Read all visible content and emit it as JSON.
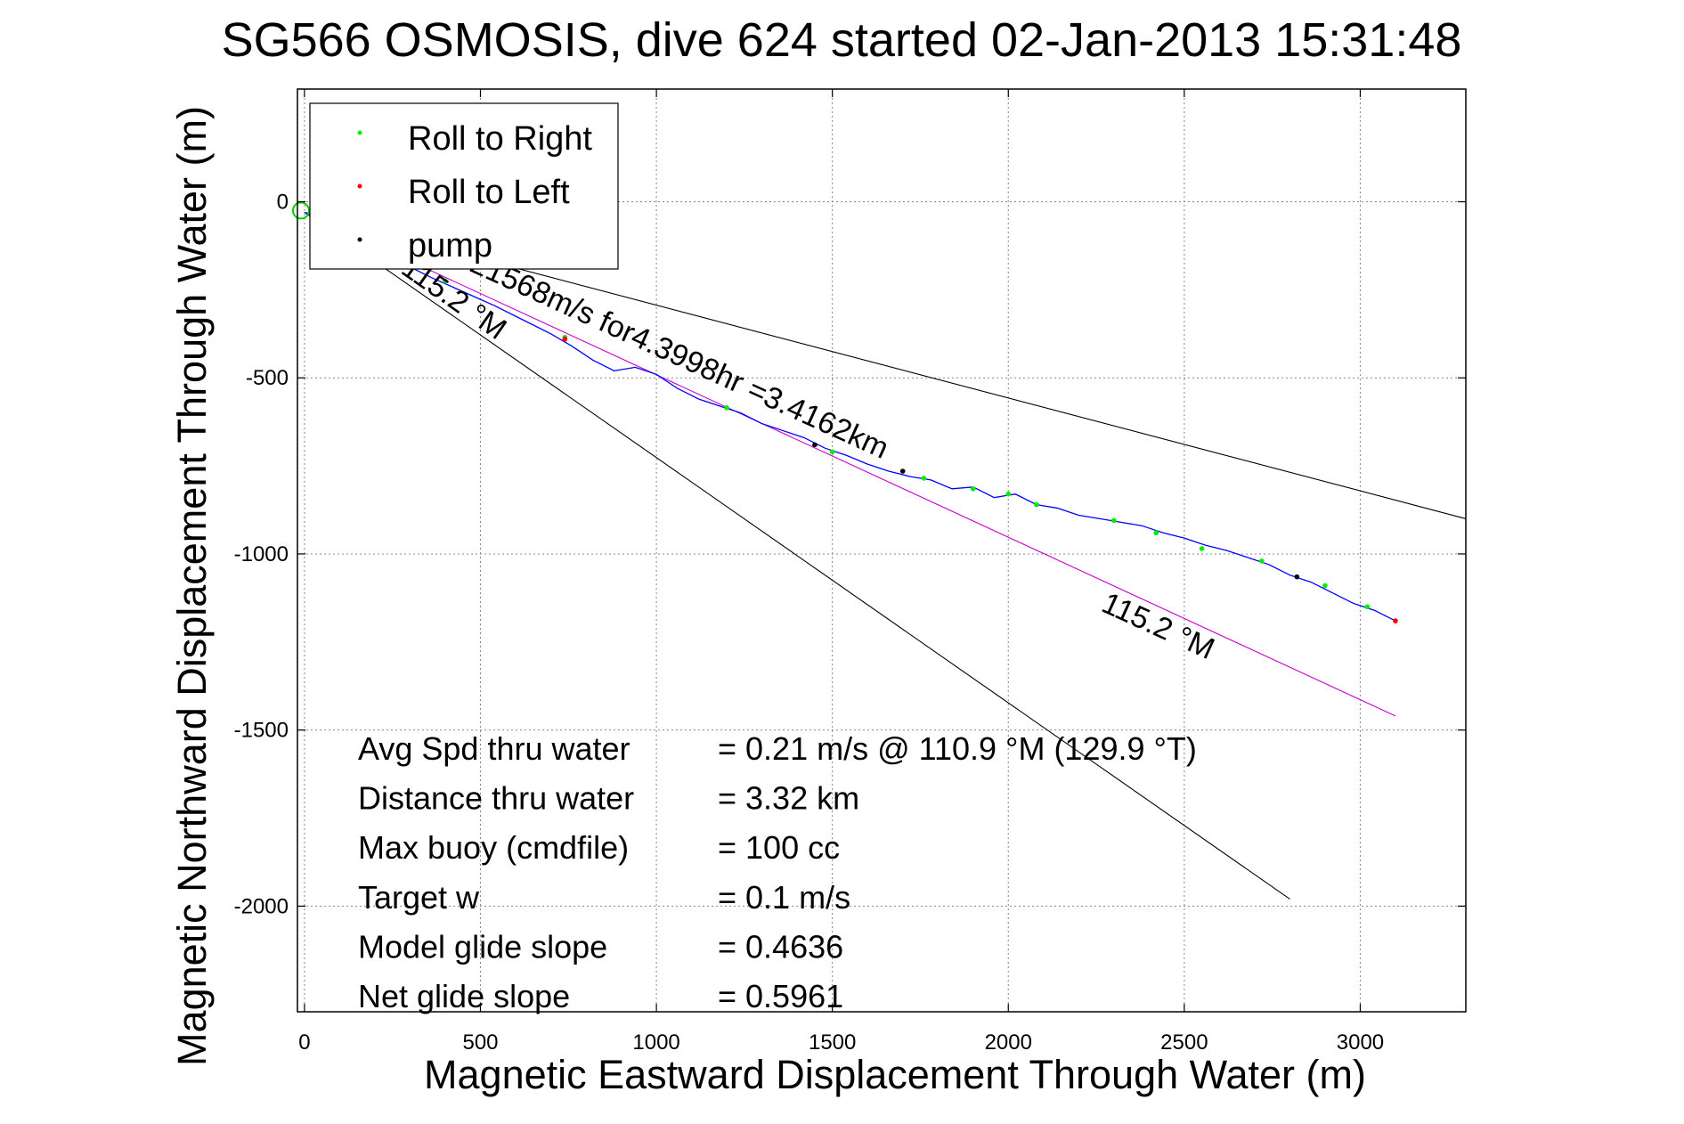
{
  "chart_data": {
    "type": "line",
    "title": "SG566 OSMOSIS, dive 624 started 02-Jan-2013 15:31:48",
    "xlabel": "Magnetic Eastward Displacement Through Water (m)",
    "ylabel": "Magnetic Northward Displacement Through Water (m)",
    "xlim": [
      -20,
      3300
    ],
    "ylim": [
      -2300,
      320
    ],
    "xticks": [
      0,
      500,
      1000,
      1500,
      2000,
      2500,
      3000
    ],
    "yticks": [
      0,
      -500,
      -1000,
      -1500,
      -2000
    ],
    "grid": true,
    "legend_position": "top-left",
    "legend": [
      {
        "label": "Roll to Right",
        "color": "#00ee00"
      },
      {
        "label": "Roll to Left",
        "color": "#ff0000"
      },
      {
        "label": "pump",
        "color": "#000000"
      }
    ],
    "track": {
      "color": "#0000ff",
      "x": [
        0,
        120,
        250,
        360,
        450,
        540,
        620,
        700,
        760,
        820,
        880,
        940,
        1000,
        1060,
        1120,
        1180,
        1240,
        1300,
        1360,
        1420,
        1480,
        1540,
        1600,
        1660,
        1720,
        1780,
        1840,
        1900,
        1960,
        2020,
        2080,
        2140,
        2200,
        2260,
        2320,
        2380,
        2440,
        2500,
        2560,
        2620,
        2680,
        2740,
        2800,
        2860,
        2920,
        2980,
        3040,
        3100
      ],
      "y": [
        -30,
        -90,
        -160,
        -215,
        -255,
        -295,
        -335,
        -375,
        -410,
        -450,
        -480,
        -470,
        -490,
        -530,
        -560,
        -580,
        -600,
        -630,
        -650,
        -670,
        -700,
        -720,
        -745,
        -765,
        -780,
        -790,
        -815,
        -810,
        -840,
        -830,
        -860,
        -870,
        -890,
        -900,
        -910,
        -920,
        -940,
        -955,
        -975,
        -990,
        -1010,
        -1030,
        -1060,
        -1080,
        -1110,
        -1140,
        -1160,
        -1190
      ]
    },
    "markers": {
      "roll_right": {
        "x": [
          400,
          740,
          1200,
          1500,
          1760,
          1900,
          2000,
          2080,
          2300,
          2420,
          2550,
          2720,
          2900,
          3020
        ],
        "y": [
          -225,
          -385,
          -585,
          -710,
          -785,
          -815,
          -830,
          -860,
          -905,
          -940,
          -985,
          -1020,
          -1090,
          -1150
        ]
      },
      "roll_left": {
        "x": [
          740,
          3100
        ],
        "y": [
          -390,
          -1190
        ]
      },
      "pump": {
        "x": [
          1450,
          1700,
          2820
        ],
        "y": [
          -690,
          -765,
          -1065
        ]
      }
    },
    "start_marker": {
      "x": -10,
      "y": -25,
      "color": "#00cc00"
    },
    "lines": [
      {
        "color": "#000000",
        "x": [
          0,
          3300
        ],
        "y": [
          -30,
          -900
        ]
      },
      {
        "color": "#000000",
        "x": [
          0,
          2800
        ],
        "y": [
          -30,
          -1980
        ]
      },
      {
        "color": "#cc00cc",
        "x": [
          0,
          3100
        ],
        "y": [
          -30,
          -1460
        ]
      }
    ],
    "annotations": [
      {
        "text": "115.2 °M",
        "x": 270,
        "y": -200,
        "angle": 35
      },
      {
        "text": "0.21568m/s for4.3998hr =3.4162km",
        "x": 400,
        "y": -165,
        "angle": 24.5
      },
      {
        "text": "115.2 °M",
        "x": 2260,
        "y": -1160,
        "angle": 24.5
      }
    ],
    "stats": [
      {
        "label": "Avg Spd thru water",
        "value": "=  0.21 m/s @ 110.9 °M (129.9 °T)"
      },
      {
        "label": "Distance thru water",
        "value": "=  3.32 km"
      },
      {
        "label": "Max buoy (cmdfile)",
        "value": "= 100 cc"
      },
      {
        "label": "Target w",
        "value": "= 0.1 m/s"
      },
      {
        "label": "Model glide slope",
        "value": "= 0.4636"
      },
      {
        "label": "Net glide slope",
        "value": "= 0.5961"
      }
    ]
  }
}
